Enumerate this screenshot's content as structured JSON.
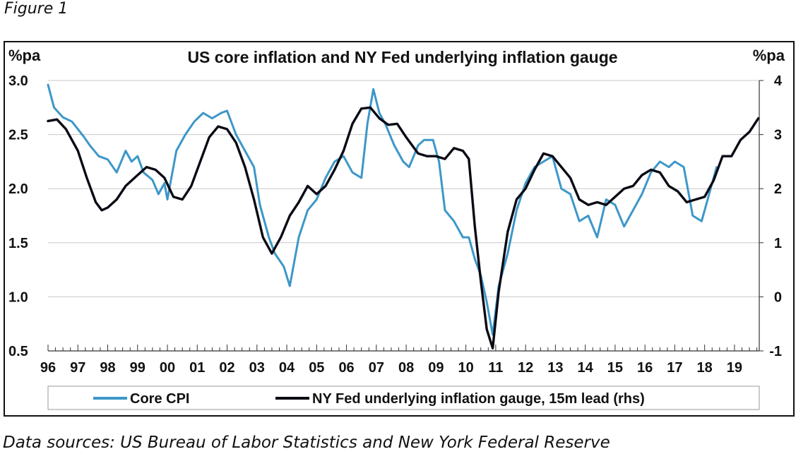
{
  "figure_label": "Figure 1",
  "source_note": "Data sources: US Bureau of Labor Statistics and New York Federal Reserve",
  "colors": {
    "core_cpi": "#3c97c8",
    "gauge": "#0a0a14",
    "grid": "#c8c8c8",
    "axis": "#333333"
  },
  "chart_data": {
    "type": "line",
    "title": "US core inflation and NY Fed underlying inflation gauge",
    "ylabel_left": "%pa",
    "ylabel_right": "%pa",
    "ylim_left": [
      0.5,
      3.0
    ],
    "ylim_right": [
      -1,
      4
    ],
    "yticks_left": [
      "3.0",
      "2.5",
      "2.0",
      "1.5",
      "1.0",
      "0.5"
    ],
    "yticks_right": [
      "4",
      "3",
      "2",
      "1",
      "0",
      "-1"
    ],
    "xlim": [
      1996,
      2019.83
    ],
    "xticks": [
      "96",
      "97",
      "98",
      "99",
      "00",
      "01",
      "02",
      "03",
      "04",
      "05",
      "06",
      "07",
      "08",
      "09",
      "10",
      "11",
      "12",
      "13",
      "14",
      "15",
      "16",
      "17",
      "18",
      "19"
    ],
    "grid": "horizontal",
    "legend_position": "bottom",
    "series": [
      {
        "name": "Core CPI",
        "axis": "left",
        "x": [
          1996.0,
          1996.2,
          1996.5,
          1996.8,
          1997.0,
          1997.2,
          1997.4,
          1997.7,
          1998.0,
          1998.3,
          1998.6,
          1998.8,
          1999.0,
          1999.2,
          1999.5,
          1999.7,
          1999.9,
          2000.0,
          2000.3,
          2000.6,
          2000.9,
          2001.2,
          2001.5,
          2001.8,
          2002.0,
          2002.3,
          2002.6,
          2002.9,
          2003.1,
          2003.4,
          2003.6,
          2003.9,
          2004.1,
          2004.4,
          2004.7,
          2005.0,
          2005.3,
          2005.6,
          2005.9,
          2006.2,
          2006.5,
          2006.7,
          2006.9,
          2007.1,
          2007.3,
          2007.6,
          2007.9,
          2008.1,
          2008.4,
          2008.6,
          2008.9,
          2009.1,
          2009.3,
          2009.6,
          2009.9,
          2010.1,
          2010.3,
          2010.5,
          2010.7,
          2010.9,
          2011.1,
          2011.4,
          2011.7,
          2012.0,
          2012.3,
          2012.6,
          2012.9,
          2013.2,
          2013.5,
          2013.8,
          2014.1,
          2014.4,
          2014.7,
          2015.0,
          2015.3,
          2015.6,
          2015.9,
          2016.2,
          2016.5,
          2016.8,
          2017.0,
          2017.3,
          2017.6,
          2017.9,
          2018.1,
          2018.4
        ],
        "y": [
          2.96,
          2.75,
          2.66,
          2.62,
          2.55,
          2.48,
          2.4,
          2.3,
          2.27,
          2.15,
          2.35,
          2.25,
          2.3,
          2.15,
          2.08,
          1.95,
          2.05,
          1.9,
          2.35,
          2.5,
          2.62,
          2.7,
          2.65,
          2.7,
          2.72,
          2.5,
          2.35,
          2.2,
          1.85,
          1.55,
          1.4,
          1.28,
          1.1,
          1.55,
          1.8,
          1.9,
          2.1,
          2.25,
          2.3,
          2.15,
          2.1,
          2.6,
          2.92,
          2.7,
          2.6,
          2.4,
          2.25,
          2.2,
          2.4,
          2.45,
          2.45,
          2.25,
          1.8,
          1.7,
          1.55,
          1.55,
          1.35,
          1.2,
          0.95,
          0.65,
          1.1,
          1.4,
          1.8,
          2.05,
          2.2,
          2.25,
          2.3,
          2.0,
          1.95,
          1.7,
          1.75,
          1.55,
          1.9,
          1.85,
          1.65,
          1.8,
          1.95,
          2.15,
          2.25,
          2.2,
          2.25,
          2.2,
          1.75,
          1.7,
          1.9,
          2.2
        ]
      },
      {
        "name": "NY Fed underlying inflation gauge, 15m lead (rhs)",
        "axis": "right",
        "x": [
          1996.0,
          1996.3,
          1996.6,
          1997.0,
          1997.3,
          1997.6,
          1997.8,
          1998.0,
          1998.3,
          1998.6,
          1999.0,
          1999.3,
          1999.6,
          1999.9,
          2000.2,
          2000.5,
          2000.8,
          2001.1,
          2001.4,
          2001.7,
          2002.0,
          2002.3,
          2002.6,
          2002.9,
          2003.2,
          2003.5,
          2003.8,
          2004.1,
          2004.4,
          2004.7,
          2005.0,
          2005.3,
          2005.6,
          2005.9,
          2006.2,
          2006.5,
          2006.8,
          2007.1,
          2007.4,
          2007.7,
          2008.0,
          2008.4,
          2008.7,
          2009.0,
          2009.3,
          2009.6,
          2009.9,
          2010.1,
          2010.3,
          2010.5,
          2010.7,
          2010.9,
          2011.1,
          2011.4,
          2011.7,
          2012.0,
          2012.3,
          2012.6,
          2012.9,
          2013.2,
          2013.5,
          2013.8,
          2014.1,
          2014.4,
          2014.7,
          2015.0,
          2015.3,
          2015.6,
          2015.9,
          2016.2,
          2016.5,
          2016.8,
          2017.1,
          2017.4,
          2017.7,
          2018.0,
          2018.3,
          2018.6,
          2018.9,
          2019.2,
          2019.5,
          2019.8
        ],
        "y": [
          3.25,
          3.28,
          3.1,
          2.7,
          2.2,
          1.75,
          1.6,
          1.65,
          1.8,
          2.05,
          2.25,
          2.4,
          2.35,
          2.2,
          1.85,
          1.8,
          2.05,
          2.5,
          2.95,
          3.15,
          3.1,
          2.85,
          2.4,
          1.8,
          1.1,
          0.8,
          1.1,
          1.5,
          1.75,
          2.05,
          1.9,
          2.05,
          2.35,
          2.7,
          3.2,
          3.48,
          3.5,
          3.3,
          3.18,
          3.2,
          2.95,
          2.65,
          2.6,
          2.6,
          2.55,
          2.75,
          2.7,
          2.55,
          1.3,
          0.3,
          -0.6,
          -0.95,
          0.1,
          1.2,
          1.8,
          2.0,
          2.35,
          2.65,
          2.6,
          2.4,
          2.2,
          1.8,
          1.7,
          1.75,
          1.7,
          1.85,
          2.0,
          2.05,
          2.25,
          2.35,
          2.3,
          2.05,
          1.95,
          1.75,
          1.8,
          1.85,
          2.15,
          2.6,
          2.6,
          2.9,
          3.05,
          3.3
        ]
      }
    ]
  }
}
